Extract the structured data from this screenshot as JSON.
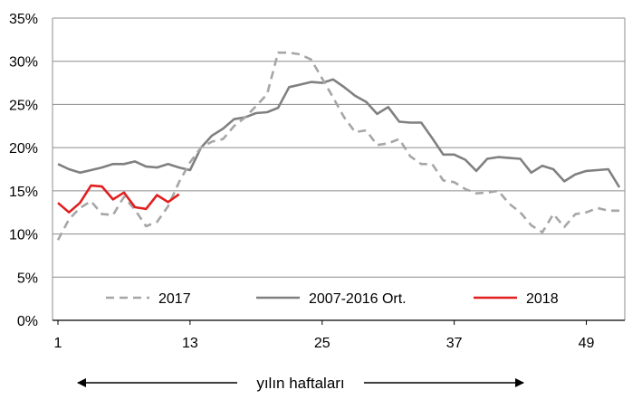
{
  "chart_data": {
    "type": "line",
    "title": "",
    "xlabel": "",
    "ylabel": "",
    "xlim": [
      1,
      52
    ],
    "ylim": [
      0,
      35
    ],
    "x_ticks": [
      "1",
      "13",
      "25",
      "37",
      "49"
    ],
    "y_ticks": [
      "0%",
      "5%",
      "10%",
      "15%",
      "20%",
      "25%",
      "30%",
      "35%"
    ],
    "grid": "horizontal",
    "legend_position": "bottom-inside",
    "annotation": "yılın haftaları",
    "series": [
      {
        "name": "2017",
        "style": "dashed",
        "color": "#a6a6a6",
        "x": [
          1,
          2,
          3,
          4,
          5,
          6,
          7,
          8,
          9,
          10,
          11,
          12,
          13,
          14,
          15,
          16,
          17,
          18,
          19,
          20,
          21,
          22,
          23,
          24,
          25,
          26,
          27,
          28,
          29,
          30,
          31,
          32,
          33,
          34,
          35,
          36,
          37,
          38,
          39,
          40,
          41,
          42,
          43,
          44,
          45,
          46,
          47,
          48,
          49,
          50,
          51,
          52
        ],
        "values": [
          9.3,
          11.7,
          13.0,
          13.8,
          12.3,
          12.2,
          14.3,
          12.8,
          10.9,
          11.4,
          13.2,
          16.0,
          18.3,
          20.0,
          20.7,
          21.0,
          22.5,
          23.5,
          24.8,
          26.2,
          31.0,
          31.0,
          30.8,
          30.2,
          28.0,
          25.8,
          23.5,
          21.8,
          22.0,
          20.3,
          20.5,
          21.0,
          19.0,
          18.1,
          18.1,
          16.2,
          16.0,
          15.2,
          14.7,
          14.8,
          15.0,
          13.5,
          12.5,
          11.0,
          10.2,
          12.3,
          10.8,
          12.3,
          12.5,
          13.0,
          12.7,
          12.7
        ]
      },
      {
        "name": "2007-2016 Ort.",
        "style": "solid",
        "color": "#808080",
        "x": [
          1,
          2,
          3,
          4,
          5,
          6,
          7,
          8,
          9,
          10,
          11,
          12,
          13,
          14,
          15,
          16,
          17,
          18,
          19,
          20,
          21,
          22,
          23,
          24,
          25,
          26,
          27,
          28,
          29,
          30,
          31,
          32,
          33,
          34,
          35,
          36,
          37,
          38,
          39,
          40,
          41,
          42,
          43,
          44,
          45,
          46,
          47,
          48,
          49,
          50,
          51,
          52
        ],
        "values": [
          18.1,
          17.5,
          17.1,
          17.4,
          17.7,
          18.1,
          18.1,
          18.4,
          17.8,
          17.7,
          18.1,
          17.7,
          17.4,
          20.0,
          21.4,
          22.2,
          23.3,
          23.5,
          24.0,
          24.1,
          24.6,
          27.0,
          27.3,
          27.6,
          27.5,
          27.9,
          27.0,
          26.0,
          25.3,
          23.9,
          24.7,
          23.0,
          22.9,
          22.9,
          21.1,
          19.2,
          19.2,
          18.6,
          17.3,
          18.7,
          18.9,
          18.8,
          18.7,
          17.1,
          17.9,
          17.5,
          16.1,
          16.9,
          17.3,
          17.4,
          17.5,
          15.4
        ]
      },
      {
        "name": "2018",
        "style": "solid",
        "color": "#e01f1f",
        "x": [
          1,
          2,
          3,
          4,
          5,
          6,
          7,
          8,
          9,
          10,
          11,
          12
        ],
        "values": [
          13.6,
          12.5,
          13.6,
          15.6,
          15.5,
          14.0,
          14.8,
          13.1,
          12.9,
          14.5,
          13.7,
          14.6
        ]
      }
    ]
  }
}
